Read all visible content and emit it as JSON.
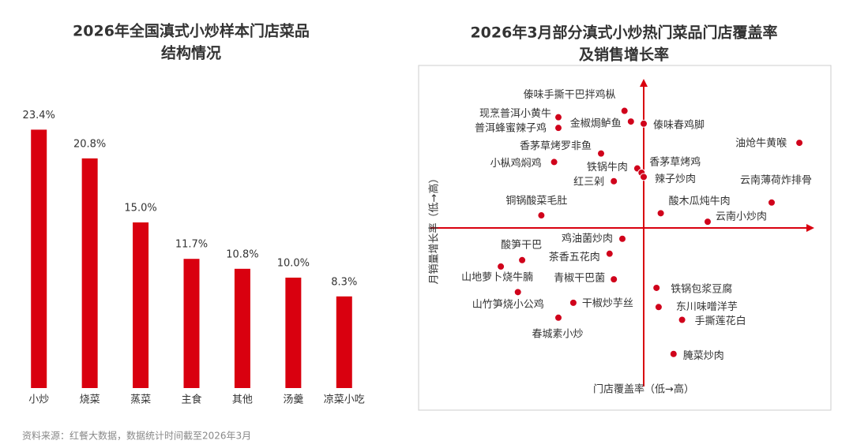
{
  "chart_data": [
    {
      "type": "bar",
      "title": [
        "2026年全国滇式小炒样本门店菜品",
        "结构情况"
      ],
      "categories": [
        "小炒",
        "烧菜",
        "蒸菜",
        "主食",
        "其他",
        "汤羹",
        "凉菜小吃"
      ],
      "values": [
        23.4,
        20.8,
        15.0,
        11.7,
        10.8,
        10.0,
        8.3
      ],
      "value_labels": [
        "23.4%",
        "20.8%",
        "15.0%",
        "11.7%",
        "10.8%",
        "10.0%",
        "8.3%"
      ],
      "color": "#d9000f",
      "ylim": [
        0,
        25
      ]
    },
    {
      "type": "scatter",
      "title": [
        "2026年3月部分滇式小炒热门菜品门店覆盖率",
        "及销售增长率"
      ],
      "x_label": "门店覆盖率（低→高）",
      "y_label": "月销量增长率（低→高）",
      "labels": [
        "傣味手撕干巴拌鸡枞",
        "现烹普洱小黄牛",
        "金椒焗鲈鱼",
        "傣味春鸡脚",
        "普洱蜂蜜辣子鸡",
        "油炝牛黄喉",
        "香茅草烤罗非鱼",
        "小枞鸡焖鸡",
        "铁锅牛肉",
        "香茅草烤鸡",
        "辣子炒肉",
        "红三剁",
        "云南薄荷炸排骨",
        "铜锅酸菜毛肚",
        "酸木瓜炖牛肉",
        "云南小炒肉",
        "鸡油菌炒肉",
        "酸笋干巴",
        "山地萝卜烧牛腩",
        "茶香五花肉",
        "青椒干巴菌",
        "铁锅包浆豆腐",
        "山竹笋烧小公鸡",
        "干椒炒芋丝",
        "东川味噌洋芋",
        "手撕莲花白",
        "春城素小炒",
        "腌菜炒肉"
      ],
      "x": [
        -0.9,
        -4.0,
        -0.6,
        0.0,
        -4.0,
        7.3,
        -2.0,
        -4.2,
        -0.3,
        -0.1,
        0.0,
        -1.4,
        6.0,
        -4.8,
        0.8,
        3.0,
        -1.0,
        -5.7,
        -6.7,
        -1.6,
        -1.4,
        0.6,
        -5.9,
        -3.3,
        0.7,
        1.8,
        -4.0,
        1.4
      ],
      "values": [
        5.5,
        5.2,
        5.0,
        4.9,
        4.7,
        4.0,
        3.5,
        3.1,
        2.8,
        2.6,
        2.4,
        2.2,
        1.2,
        0.6,
        0.7,
        0.3,
        -0.5,
        -1.5,
        -1.8,
        -1.2,
        -2.4,
        -2.8,
        -3.0,
        -3.5,
        -3.7,
        -4.3,
        -4.2,
        -5.9
      ],
      "color": "#d0021b",
      "xlim": [
        -10,
        8
      ],
      "ylim": [
        -7.5,
        7
      ]
    }
  ],
  "source": "资料来源：红餐大数据，数据统计时间截至2026年3月"
}
